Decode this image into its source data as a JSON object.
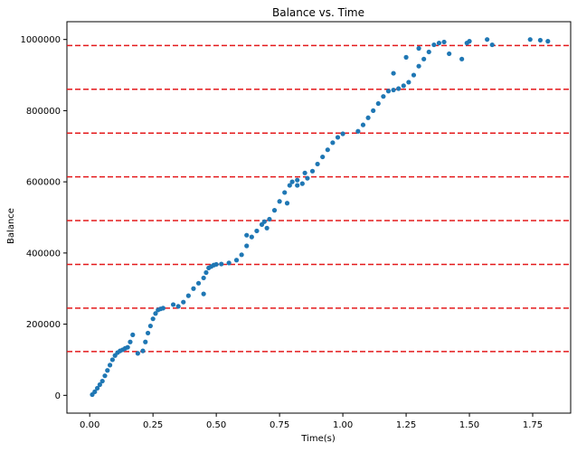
{
  "chart_data": {
    "type": "scatter",
    "title": "Balance vs. Time",
    "xlabel": "Time(s)",
    "ylabel": "Balance",
    "xlim": [
      -0.09,
      1.9
    ],
    "ylim": [
      -50000,
      1050000
    ],
    "x_ticks": [
      0.0,
      0.25,
      0.5,
      0.75,
      1.0,
      1.25,
      1.5,
      1.75
    ],
    "x_tick_labels": [
      "0.00",
      "0.25",
      "0.50",
      "0.75",
      "1.00",
      "1.25",
      "1.50",
      "1.75"
    ],
    "y_ticks": [
      0,
      200000,
      400000,
      600000,
      800000,
      1000000
    ],
    "y_tick_labels": [
      "0",
      "200000",
      "400000",
      "600000",
      "800000",
      "1000000"
    ],
    "grid": false,
    "legend": "none",
    "hlines": [
      123000,
      245000,
      368000,
      491000,
      614000,
      737000,
      860000,
      983000
    ],
    "hline_style": {
      "color": "#e41a1c",
      "dash": "dashed"
    },
    "point_color": "#1f77b4",
    "series": [
      {
        "x": [
          0.01,
          0.02,
          0.03,
          0.04,
          0.05,
          0.06,
          0.07,
          0.08,
          0.09,
          0.1,
          0.11,
          0.12,
          0.13,
          0.14,
          0.15,
          0.16,
          0.17,
          0.21,
          0.22,
          0.23,
          0.24,
          0.25,
          0.26,
          0.27,
          0.28,
          0.29,
          0.35,
          0.37,
          0.39,
          0.41,
          0.43,
          0.45,
          0.46,
          0.47,
          0.48,
          0.49,
          0.5,
          0.52,
          0.55,
          0.58,
          0.6,
          0.62,
          0.64,
          0.66,
          0.68,
          0.69,
          0.71,
          0.73,
          0.75,
          0.77,
          0.79,
          0.8,
          0.82,
          0.84,
          0.86,
          0.88,
          0.9,
          0.92,
          0.94,
          0.96,
          0.98,
          1.0,
          1.06,
          1.08,
          1.1,
          1.12,
          1.14,
          1.16,
          1.18,
          1.2,
          1.22,
          1.24,
          1.26,
          1.28,
          1.3,
          1.32,
          1.34,
          1.36,
          1.38,
          1.4,
          1.42,
          1.47,
          1.49,
          1.5,
          1.57,
          1.59,
          1.74,
          1.78,
          1.81,
          0.62,
          0.7,
          0.78,
          0.82,
          0.85,
          1.2,
          1.25,
          1.3,
          0.45,
          0.33,
          0.19
        ],
        "y": [
          2000,
          10000,
          20000,
          30000,
          40000,
          55000,
          70000,
          85000,
          100000,
          112000,
          120000,
          125000,
          128000,
          132000,
          135000,
          150000,
          170000,
          125000,
          150000,
          175000,
          195000,
          215000,
          230000,
          240000,
          243000,
          245000,
          250000,
          262000,
          280000,
          300000,
          315000,
          330000,
          345000,
          358000,
          362000,
          366000,
          368000,
          369000,
          372000,
          380000,
          395000,
          420000,
          445000,
          462000,
          480000,
          488000,
          495000,
          520000,
          545000,
          570000,
          590000,
          600000,
          590000,
          595000,
          610000,
          630000,
          650000,
          670000,
          690000,
          710000,
          725000,
          735000,
          742000,
          760000,
          780000,
          800000,
          820000,
          840000,
          855000,
          858000,
          862000,
          870000,
          880000,
          900000,
          925000,
          945000,
          965000,
          985000,
          990000,
          993000,
          960000,
          945000,
          990000,
          995000,
          1000000,
          985000,
          1000000,
          998000,
          995000,
          450000,
          470000,
          540000,
          605000,
          625000,
          905000,
          950000,
          975000,
          285000,
          255000,
          118000
        ]
      }
    ]
  }
}
